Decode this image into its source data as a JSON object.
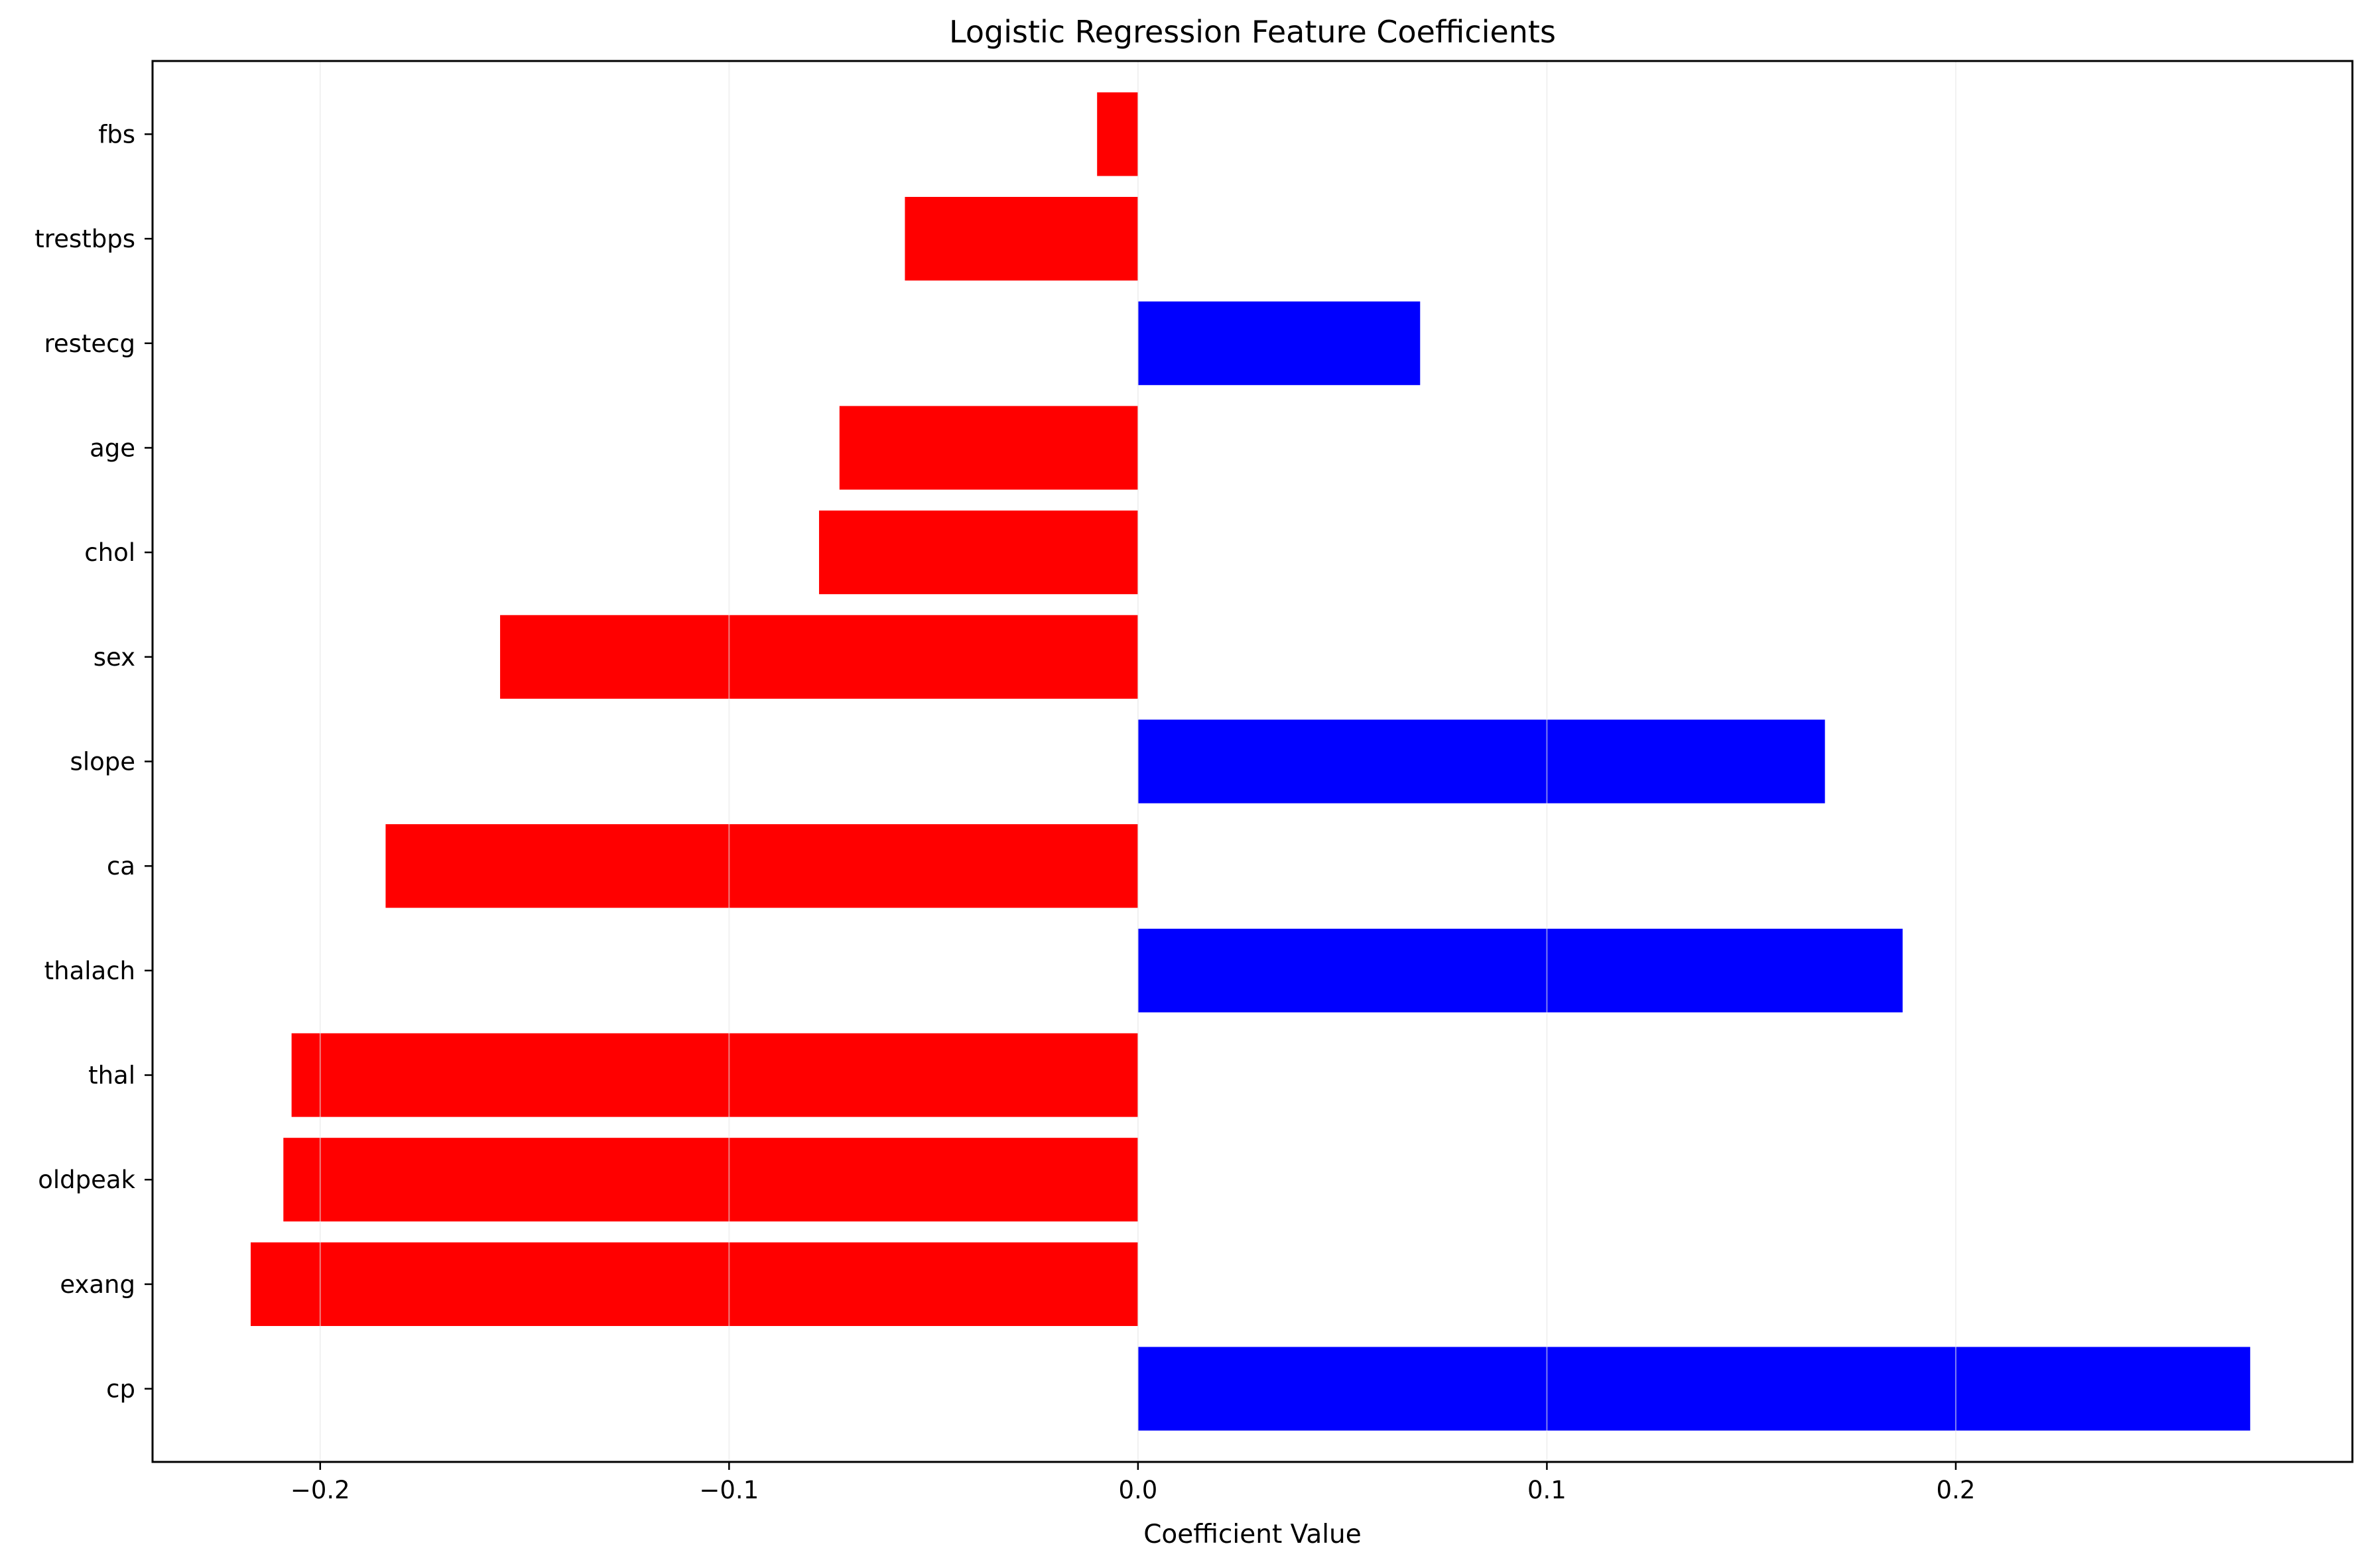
{
  "chart_data": {
    "type": "bar",
    "orientation": "horizontal",
    "title": "Logistic Regression Feature Coefficients",
    "xlabel": "Coefficient Value",
    "ylabel": "",
    "xlim": [
      -0.241,
      0.297
    ],
    "xticks": [
      -0.2,
      -0.1,
      0.0,
      0.1,
      0.2
    ],
    "xtick_labels": [
      "−0.2",
      "−0.1",
      "0.0",
      "0.1",
      "0.2"
    ],
    "grid": "vertical",
    "categories": [
      "cp",
      "exang",
      "oldpeak",
      "thal",
      "thalach",
      "ca",
      "slope",
      "sex",
      "chol",
      "age",
      "restecg",
      "trestbps",
      "fbs"
    ],
    "values": [
      0.272,
      -0.217,
      -0.209,
      -0.207,
      0.187,
      -0.184,
      0.168,
      -0.156,
      -0.078,
      -0.073,
      0.069,
      -0.057,
      -0.01
    ],
    "colors": {
      "positive": "#0000ff",
      "negative": "#ff0000",
      "grid": "#e6e6e6",
      "axis": "#000000"
    }
  }
}
